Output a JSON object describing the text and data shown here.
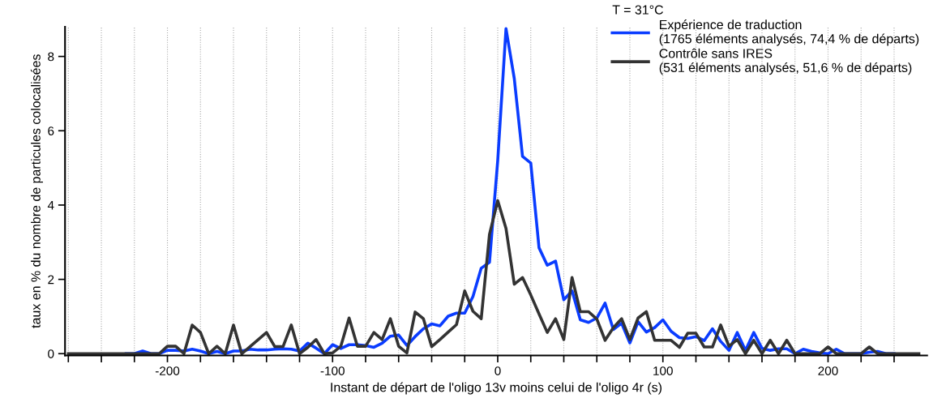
{
  "chart_data": {
    "type": "line",
    "xlabel": "Instant de départ de l'oligo 13v moins celui de l'oligo 4r (s)",
    "ylabel": "taux en % du nombre de particules colocalisées",
    "legend_title": "T = 31°C",
    "x": [
      -260,
      -255,
      -250,
      -245,
      -240,
      -235,
      -230,
      -225,
      -220,
      -215,
      -210,
      -205,
      -200,
      -195,
      -190,
      -185,
      -180,
      -175,
      -170,
      -165,
      -160,
      -155,
      -150,
      -145,
      -140,
      -135,
      -130,
      -125,
      -120,
      -115,
      -110,
      -105,
      -100,
      -95,
      -90,
      -85,
      -80,
      -75,
      -70,
      -65,
      -60,
      -55,
      -50,
      -45,
      -40,
      -35,
      -30,
      -25,
      -20,
      -15,
      -10,
      -5,
      0,
      5,
      10,
      15,
      20,
      25,
      30,
      35,
      40,
      45,
      50,
      55,
      60,
      65,
      70,
      75,
      80,
      85,
      90,
      95,
      100,
      105,
      110,
      115,
      120,
      125,
      130,
      135,
      140,
      145,
      150,
      155,
      160,
      165,
      170,
      175,
      180,
      185,
      190,
      195,
      200,
      205,
      210,
      215,
      220,
      225,
      230,
      235,
      240,
      245,
      250,
      255
    ],
    "series": [
      {
        "name": "Expérience de traduction\n(1765 éléments analysés, 74,4 % de départs)",
        "color": "#0a3cff",
        "values": [
          null,
          null,
          null,
          null,
          null,
          null,
          null,
          0,
          0,
          0.07,
          0,
          0,
          0.09,
          0.09,
          0.07,
          0.12,
          0.07,
          0,
          0.06,
          0,
          0.07,
          0.07,
          0.12,
          0.1,
          0.1,
          0.12,
          0.13,
          0.12,
          0.07,
          0.28,
          0.15,
          0,
          0.24,
          0.14,
          0.24,
          0.24,
          0.22,
          0.17,
          0.28,
          0.47,
          0.5,
          0.22,
          0.46,
          0.67,
          0.8,
          0.75,
          1.01,
          1.09,
          1.09,
          1.54,
          2.3,
          2.46,
          5.2,
          8.75,
          7.41,
          5.31,
          5.13,
          2.85,
          2.38,
          2.49,
          1.45,
          1.69,
          0.91,
          0.84,
          0.96,
          1.36,
          0.65,
          0.82,
          0.29,
          0.86,
          0.58,
          0.7,
          0.91,
          0.6,
          0.43,
          0.41,
          0.46,
          0.35,
          0.67,
          0.33,
          0.09,
          0.57,
          0.09,
          0.57,
          0.14,
          0.09,
          0.13,
          0.13,
          0,
          0.12,
          0.06,
          0.02,
          0,
          0.12,
          0,
          0,
          0,
          0.04,
          0.06,
          0,
          0,
          null,
          null,
          null
        ]
      },
      {
        "name": "Contrôle sans IRES\n(531 éléments analysés, 51,6 % de départs)",
        "color": "#333333",
        "values": [
          0,
          0,
          0,
          0,
          0,
          0,
          0,
          0,
          0,
          0,
          0,
          0,
          0.2,
          0.2,
          0,
          0.77,
          0.57,
          0,
          0.2,
          0,
          0.77,
          0,
          0.19,
          0.38,
          0.57,
          0.19,
          0.19,
          0.77,
          0,
          0.17,
          0.38,
          0,
          0.02,
          0.2,
          0.96,
          0.2,
          0.2,
          0.57,
          0.38,
          0.94,
          0.2,
          0.02,
          1.12,
          0.94,
          0.19,
          0.38,
          0.58,
          0.78,
          1.69,
          1.14,
          0.94,
          3.21,
          4.12,
          3.37,
          1.87,
          2.05,
          1.58,
          1.07,
          0.57,
          0.94,
          0.38,
          2.05,
          1.13,
          1.13,
          0.93,
          0.36,
          0.7,
          0.94,
          0.38,
          0.96,
          1.13,
          0.36,
          0.36,
          0.36,
          0.17,
          0.55,
          0.55,
          0.18,
          0.18,
          0.77,
          0.2,
          0.38,
          0,
          0.36,
          0,
          0.36,
          0,
          0.36,
          0,
          0,
          0,
          0,
          0.18,
          0,
          0,
          0,
          0,
          0.18,
          0,
          0,
          0,
          0,
          0,
          0
        ]
      }
    ],
    "xlim": [
      -262,
      260
    ],
    "ylim": [
      -0.05,
      8.8
    ],
    "xticks": [
      {
        "value": -260,
        "label": null
      },
      {
        "value": -240,
        "label": null
      },
      {
        "value": -220,
        "label": null
      },
      -200,
      {
        "value": -180,
        "label": null
      },
      {
        "value": -160,
        "label": null
      },
      {
        "value": -140,
        "label": null
      },
      {
        "value": -120,
        "label": null
      },
      -100,
      {
        "value": -80,
        "label": null
      },
      {
        "value": -60,
        "label": null
      },
      {
        "value": -40,
        "label": null
      },
      {
        "value": -20,
        "label": null
      },
      0,
      {
        "value": 20,
        "label": null
      },
      {
        "value": 40,
        "label": null
      },
      {
        "value": 60,
        "label": null
      },
      {
        "value": 80,
        "label": null
      },
      100,
      {
        "value": 120,
        "label": null
      },
      {
        "value": 140,
        "label": null
      },
      {
        "value": 160,
        "label": null
      },
      {
        "value": 180,
        "label": null
      },
      200,
      {
        "value": 220,
        "label": null
      },
      {
        "value": 240,
        "label": null
      }
    ],
    "yticks": [
      0,
      2,
      4,
      6,
      8
    ],
    "grid": "x",
    "legend": "top right",
    "line_style": "solid",
    "marker": "none"
  }
}
